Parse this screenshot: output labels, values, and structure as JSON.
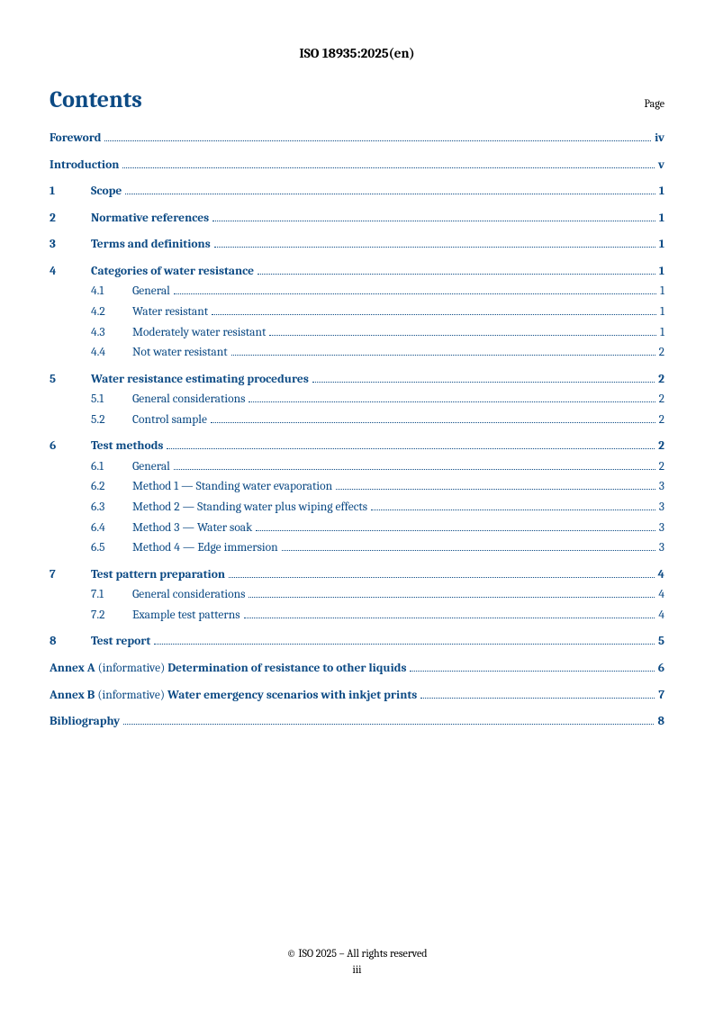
{
  "docId": "ISO 18935:2025(en)",
  "heading": "Contents",
  "pageLabel": "Page",
  "footer": {
    "copyright": "© ISO 2025 – All rights reserved",
    "pageNum": "iii"
  },
  "entries": [
    {
      "kind": "plain",
      "title": "Foreword",
      "page": "iv",
      "bold": true,
      "sectionStart": true
    },
    {
      "kind": "plain",
      "title": "Introduction",
      "page": "v",
      "bold": true,
      "sectionStart": true
    },
    {
      "kind": "num",
      "num": "1",
      "title": "Scope",
      "page": "1",
      "bold": true,
      "sectionStart": true
    },
    {
      "kind": "num",
      "num": "2",
      "title": "Normative references",
      "page": "1",
      "bold": true,
      "sectionStart": true
    },
    {
      "kind": "num",
      "num": "3",
      "title": "Terms and definitions",
      "page": "1",
      "bold": true,
      "sectionStart": true
    },
    {
      "kind": "num",
      "num": "4",
      "title": "Categories of water resistance",
      "page": "1",
      "bold": true,
      "sectionStart": true
    },
    {
      "kind": "sub",
      "num": "4.1",
      "title": "General",
      "page": "1"
    },
    {
      "kind": "sub",
      "num": "4.2",
      "title": "Water resistant",
      "page": "1"
    },
    {
      "kind": "sub",
      "num": "4.3",
      "title": "Moderately water resistant",
      "page": "1"
    },
    {
      "kind": "sub",
      "num": "4.4",
      "title": "Not water resistant",
      "page": "2"
    },
    {
      "kind": "num",
      "num": "5",
      "title": "Water resistance estimating procedures",
      "page": "2",
      "bold": true,
      "sectionStart": true
    },
    {
      "kind": "sub",
      "num": "5.1",
      "title": "General considerations",
      "page": "2"
    },
    {
      "kind": "sub",
      "num": "5.2",
      "title": "Control sample",
      "page": "2"
    },
    {
      "kind": "num",
      "num": "6",
      "title": "Test methods",
      "page": "2",
      "bold": true,
      "sectionStart": true
    },
    {
      "kind": "sub",
      "num": "6.1",
      "title": "General",
      "page": "2"
    },
    {
      "kind": "sub",
      "num": "6.2",
      "title": "Method 1 — Standing water evaporation",
      "page": "3"
    },
    {
      "kind": "sub",
      "num": "6.3",
      "title": "Method 2 — Standing water plus wiping effects",
      "page": "3"
    },
    {
      "kind": "sub",
      "num": "6.4",
      "title": "Method 3 — Water soak",
      "page": "3"
    },
    {
      "kind": "sub",
      "num": "6.5",
      "title": "Method 4 — Edge immersion",
      "page": "3"
    },
    {
      "kind": "num",
      "num": "7",
      "title": "Test pattern preparation",
      "page": "4",
      "bold": true,
      "sectionStart": true
    },
    {
      "kind": "sub",
      "num": "7.1",
      "title": "General considerations",
      "page": "4"
    },
    {
      "kind": "sub",
      "num": "7.2",
      "title": "Example test patterns",
      "page": "4"
    },
    {
      "kind": "num",
      "num": "8",
      "title": "Test report",
      "page": "5",
      "bold": true,
      "sectionStart": true
    },
    {
      "kind": "annex",
      "label": "Annex A",
      "note": "(informative)",
      "title": "Determination of resistance to other liquids",
      "page": "6",
      "bold": true,
      "sectionStart": true
    },
    {
      "kind": "annex",
      "label": "Annex B",
      "note": "(informative)",
      "title": "Water emergency scenarios with inkjet prints",
      "page": "7",
      "bold": true,
      "sectionStart": true
    },
    {
      "kind": "plain",
      "title": "Bibliography",
      "page": "8",
      "bold": true,
      "sectionStart": true
    }
  ]
}
